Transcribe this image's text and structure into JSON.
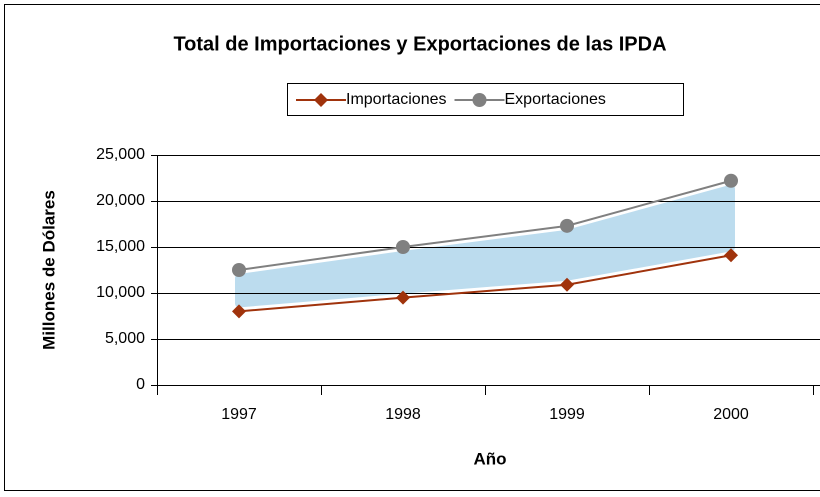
{
  "chart_data": {
    "type": "line",
    "title": "Total de Importaciones y Exportaciones de las IPDA",
    "x_label": "Año",
    "y_label": "Millones de Dólares",
    "categories": [
      "1997",
      "1998",
      "1999",
      "2000"
    ],
    "series": [
      {
        "name": "Importaciones",
        "color": "#a0330c",
        "marker": "diamond",
        "values": [
          8000,
          9500,
          10900,
          14100
        ]
      },
      {
        "name": "Exportaciones",
        "color": "#808080",
        "marker": "circle",
        "values": [
          12500,
          15000,
          17300,
          22200
        ]
      }
    ],
    "ylim": [
      0,
      25000
    ],
    "yticks": [
      0,
      {
        "value": 5000,
        "label": "5,000"
      },
      {
        "value": 10000,
        "label": "10,000"
      },
      {
        "value": 15000,
        "label": "15,000"
      },
      {
        "value": 20000,
        "label": "20,000"
      },
      {
        "value": 25000,
        "label": "25,000"
      }
    ],
    "grid": true,
    "legend": "top"
  }
}
